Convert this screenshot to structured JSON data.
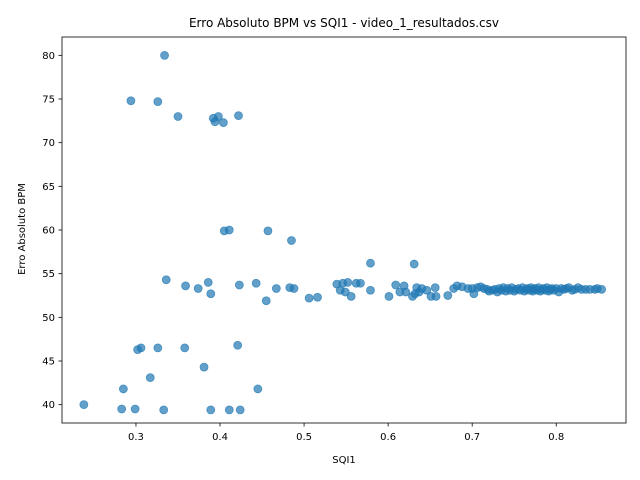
{
  "chart_data": {
    "type": "scatter",
    "title": "Erro Absoluto BPM vs SQI1 - video_1_resultados.csv",
    "xlabel": "SQI1",
    "ylabel": "Erro Absoluto BPM",
    "xlim": [
      0.212,
      0.883
    ],
    "ylim": [
      37.9,
      82.1
    ],
    "xticks": [
      0.3,
      0.4,
      0.5,
      0.6,
      0.7,
      0.8
    ],
    "xtick_labels": [
      "0.3",
      "0.4",
      "0.5",
      "0.6",
      "0.7",
      "0.8"
    ],
    "yticks": [
      40,
      45,
      50,
      55,
      60,
      65,
      70,
      75,
      80
    ],
    "ytick_labels": [
      "40",
      "45",
      "50",
      "55",
      "60",
      "65",
      "70",
      "75",
      "80"
    ],
    "grid": false,
    "marker_color": "#1f77b4",
    "marker_alpha": 0.7,
    "points": [
      [
        0.238,
        40.0
      ],
      [
        0.283,
        39.5
      ],
      [
        0.299,
        39.5
      ],
      [
        0.333,
        39.4
      ],
      [
        0.389,
        39.4
      ],
      [
        0.411,
        39.4
      ],
      [
        0.424,
        39.4
      ],
      [
        0.285,
        41.8
      ],
      [
        0.445,
        41.8
      ],
      [
        0.317,
        43.1
      ],
      [
        0.381,
        44.3
      ],
      [
        0.302,
        46.3
      ],
      [
        0.306,
        46.5
      ],
      [
        0.326,
        46.5
      ],
      [
        0.358,
        46.5
      ],
      [
        0.421,
        46.8
      ],
      [
        0.389,
        52.7
      ],
      [
        0.455,
        51.9
      ],
      [
        0.506,
        52.2
      ],
      [
        0.516,
        52.3
      ],
      [
        0.336,
        54.3
      ],
      [
        0.359,
        53.6
      ],
      [
        0.374,
        53.3
      ],
      [
        0.386,
        54.0
      ],
      [
        0.423,
        53.7
      ],
      [
        0.443,
        53.9
      ],
      [
        0.467,
        53.3
      ],
      [
        0.483,
        53.4
      ],
      [
        0.488,
        53.3
      ],
      [
        0.405,
        59.9
      ],
      [
        0.411,
        60.0
      ],
      [
        0.457,
        59.9
      ],
      [
        0.485,
        58.8
      ],
      [
        0.294,
        74.8
      ],
      [
        0.326,
        74.7
      ],
      [
        0.35,
        73.0
      ],
      [
        0.392,
        72.8
      ],
      [
        0.394,
        72.4
      ],
      [
        0.398,
        73.0
      ],
      [
        0.404,
        72.3
      ],
      [
        0.422,
        73.1
      ],
      [
        0.334,
        80.0
      ],
      [
        0.539,
        53.8
      ],
      [
        0.543,
        53.1
      ],
      [
        0.546,
        53.9
      ],
      [
        0.549,
        52.9
      ],
      [
        0.552,
        54.0
      ],
      [
        0.556,
        52.4
      ],
      [
        0.562,
        53.9
      ],
      [
        0.567,
        53.9
      ],
      [
        0.579,
        53.1
      ],
      [
        0.579,
        56.2
      ],
      [
        0.601,
        52.4
      ],
      [
        0.609,
        53.7
      ],
      [
        0.614,
        52.9
      ],
      [
        0.619,
        53.6
      ],
      [
        0.621,
        52.9
      ],
      [
        0.629,
        52.4
      ],
      [
        0.631,
        56.1
      ],
      [
        0.632,
        52.7
      ],
      [
        0.634,
        53.4
      ],
      [
        0.637,
        52.9
      ],
      [
        0.64,
        53.3
      ],
      [
        0.646,
        53.1
      ],
      [
        0.651,
        52.4
      ],
      [
        0.656,
        53.4
      ],
      [
        0.657,
        52.4
      ],
      [
        0.671,
        52.5
      ],
      [
        0.678,
        53.3
      ],
      [
        0.682,
        53.6
      ],
      [
        0.688,
        53.5
      ],
      [
        0.695,
        53.3
      ],
      [
        0.7,
        53.3
      ],
      [
        0.702,
        52.7
      ],
      [
        0.706,
        53.4
      ],
      [
        0.71,
        53.5
      ],
      [
        0.714,
        53.3
      ],
      [
        0.718,
        53.2
      ],
      [
        0.72,
        53.0
      ],
      [
        0.724,
        53.1
      ],
      [
        0.727,
        53.2
      ],
      [
        0.73,
        52.9
      ],
      [
        0.732,
        53.3
      ],
      [
        0.735,
        53.1
      ],
      [
        0.737,
        53.4
      ],
      [
        0.74,
        53.0
      ],
      [
        0.742,
        53.3
      ],
      [
        0.745,
        53.1
      ],
      [
        0.747,
        53.4
      ],
      [
        0.75,
        53.0
      ],
      [
        0.752,
        53.2
      ],
      [
        0.755,
        53.3
      ],
      [
        0.757,
        53.1
      ],
      [
        0.76,
        53.4
      ],
      [
        0.762,
        53.0
      ],
      [
        0.764,
        53.2
      ],
      [
        0.766,
        53.3
      ],
      [
        0.768,
        53.1
      ],
      [
        0.77,
        53.4
      ],
      [
        0.772,
        53.0
      ],
      [
        0.773,
        53.2
      ],
      [
        0.775,
        53.3
      ],
      [
        0.777,
        53.1
      ],
      [
        0.779,
        53.4
      ],
      [
        0.781,
        53.0
      ],
      [
        0.783,
        53.2
      ],
      [
        0.785,
        53.3
      ],
      [
        0.787,
        53.1
      ],
      [
        0.789,
        53.4
      ],
      [
        0.791,
        53.0
      ],
      [
        0.793,
        53.2
      ],
      [
        0.795,
        53.3
      ],
      [
        0.797,
        53.1
      ],
      [
        0.8,
        53.3
      ],
      [
        0.803,
        52.9
      ],
      [
        0.806,
        53.3
      ],
      [
        0.809,
        53.2
      ],
      [
        0.812,
        53.3
      ],
      [
        0.815,
        53.4
      ],
      [
        0.819,
        53.1
      ],
      [
        0.822,
        53.2
      ],
      [
        0.826,
        53.4
      ],
      [
        0.83,
        53.2
      ],
      [
        0.835,
        53.2
      ],
      [
        0.84,
        53.2
      ],
      [
        0.846,
        53.2
      ],
      [
        0.849,
        53.3
      ],
      [
        0.854,
        53.2
      ]
    ]
  }
}
